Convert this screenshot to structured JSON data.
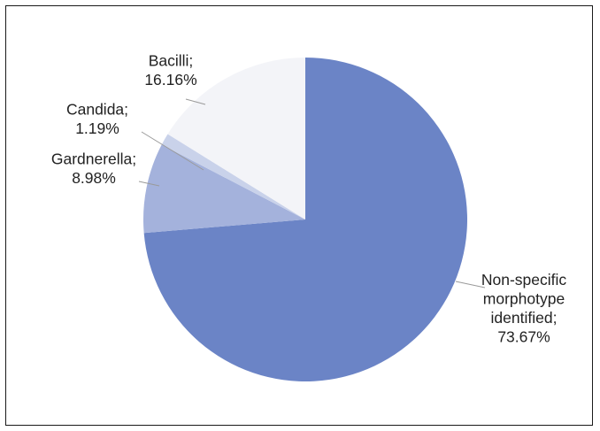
{
  "chart_data": {
    "type": "pie",
    "title": "",
    "slices": [
      {
        "label": "Non-specific morphotype identified",
        "value": 73.67,
        "value_text": "73.67%",
        "color": "#6b84c6",
        "label_lines": [
          "Non-specific",
          "morphotype",
          "identified;",
          "73.67%"
        ]
      },
      {
        "label": "Gardnerella",
        "value": 8.98,
        "value_text": "8.98%",
        "color": "#a4b2dc",
        "label_lines": [
          "Gardnerella;",
          "8.98%"
        ]
      },
      {
        "label": "Candida",
        "value": 1.19,
        "value_text": "1.19%",
        "color": "#c9d2ea",
        "label_lines": [
          "Candida;",
          "1.19%"
        ]
      },
      {
        "label": "Bacilli",
        "value": 16.16,
        "value_text": "16.16%",
        "color": "#f3f4f8",
        "label_lines": [
          "Bacilli;",
          "16.16%"
        ]
      }
    ],
    "legend": "none",
    "start_angle": "12 o'clock, clockwise"
  }
}
